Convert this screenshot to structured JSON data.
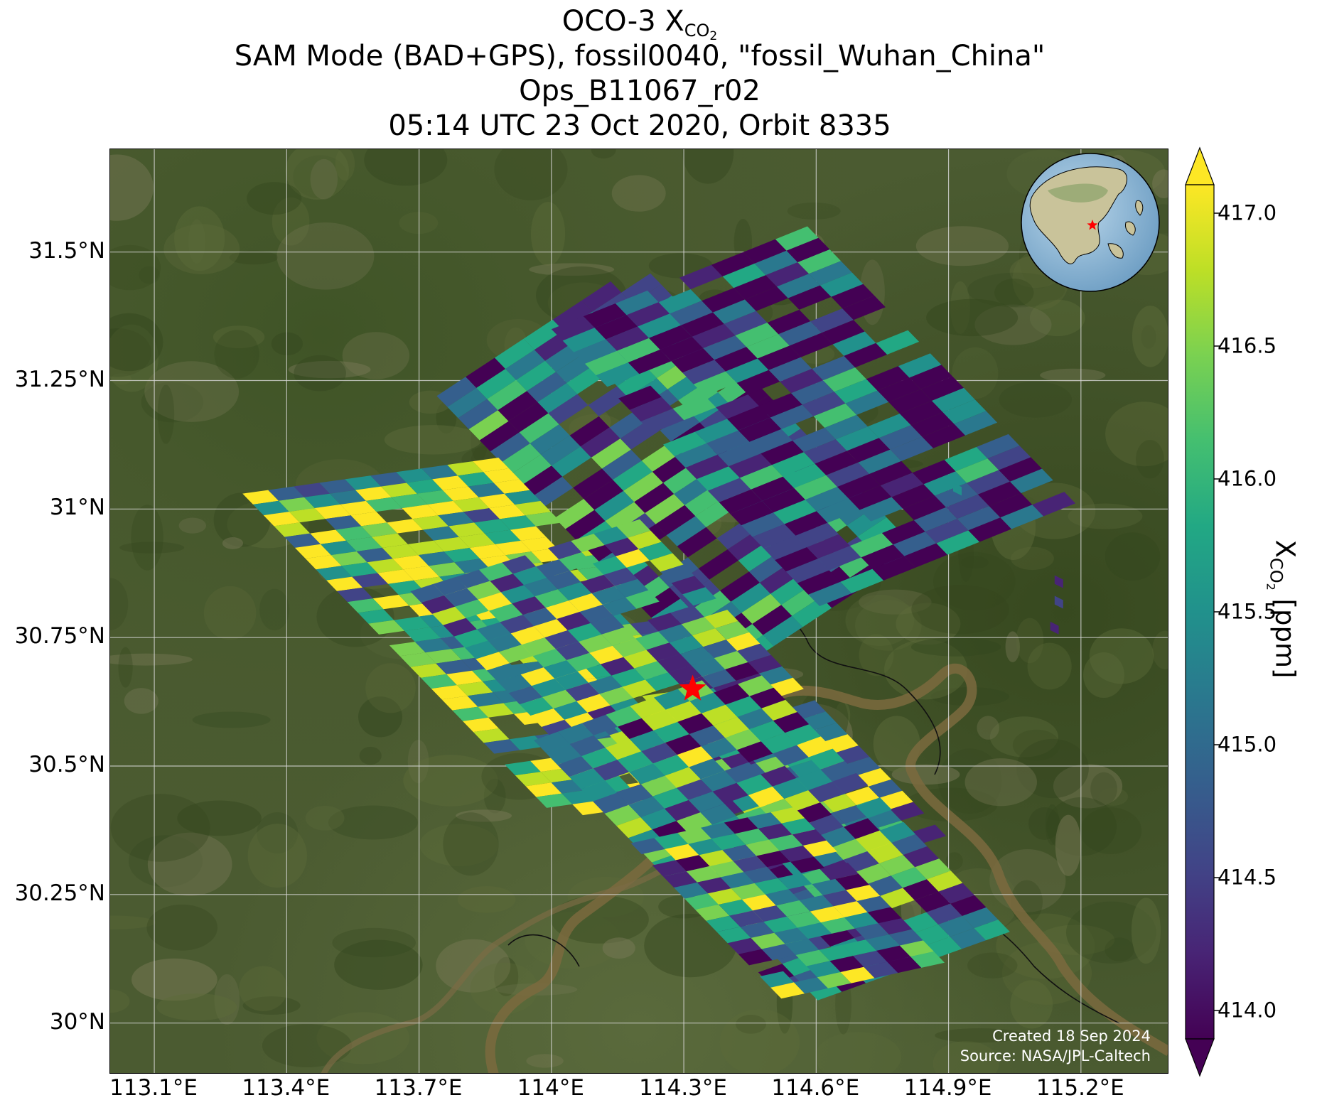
{
  "title": {
    "line1_prefix": "OCO-3 X",
    "line1_sub": "CO",
    "line1_subsub": "2",
    "line2": "SAM Mode (BAD+GPS), fossil0040, \"fossil_Wuhan_China\"",
    "line3": "Ops_B11067_r02",
    "line4": "05:14 UTC 23 Oct 2020, Orbit 8335"
  },
  "map": {
    "lon_range": [
      113.0,
      115.4
    ],
    "lat_range": [
      29.9,
      31.7
    ],
    "lat_ticks": [
      {
        "value": 30.0,
        "label": "30°N"
      },
      {
        "value": 30.25,
        "label": "30.25°N"
      },
      {
        "value": 30.5,
        "label": "30.5°N"
      },
      {
        "value": 30.75,
        "label": "30.75°N"
      },
      {
        "value": 31.0,
        "label": "31°N"
      },
      {
        "value": 31.25,
        "label": "31.25°N"
      },
      {
        "value": 31.5,
        "label": "31.5°N"
      }
    ],
    "lon_ticks": [
      {
        "value": 113.1,
        "label": "113.1°E"
      },
      {
        "value": 113.4,
        "label": "113.4°E"
      },
      {
        "value": 113.7,
        "label": "113.7°E"
      },
      {
        "value": 114.0,
        "label": "114°E"
      },
      {
        "value": 114.3,
        "label": "114.3°E"
      },
      {
        "value": 114.6,
        "label": "114.6°E"
      },
      {
        "value": 114.9,
        "label": "114.9°E"
      },
      {
        "value": 115.2,
        "label": "115.2°E"
      }
    ],
    "target": {
      "name": "fossil_Wuhan_China",
      "lon": 114.32,
      "lat": 30.65,
      "marker_color": "#ff0000"
    },
    "background_color": "#4a5a32",
    "gridlines": true
  },
  "credit": {
    "created": "Created 18 Sep 2024",
    "source": "Source: NASA/JPL-Caltech"
  },
  "colorbar": {
    "min": 414.0,
    "max": 417.0,
    "colormap": "viridis",
    "extend": "both",
    "ticks": [
      {
        "value": 414.0,
        "label": "414.0"
      },
      {
        "value": 414.5,
        "label": "414.5"
      },
      {
        "value": 415.0,
        "label": "415.0"
      },
      {
        "value": 415.5,
        "label": "415.5"
      },
      {
        "value": 416.0,
        "label": "416.0"
      },
      {
        "value": 416.5,
        "label": "416.5"
      },
      {
        "value": 417.0,
        "label": "417.0"
      }
    ],
    "label_prefix": "X",
    "label_sub": "CO",
    "label_subsub": "2",
    "label_unit": " [ppm]"
  },
  "inset_globe": {
    "center_lon": 114.3,
    "center_lat": 30.6,
    "marker": "red star at target"
  }
}
